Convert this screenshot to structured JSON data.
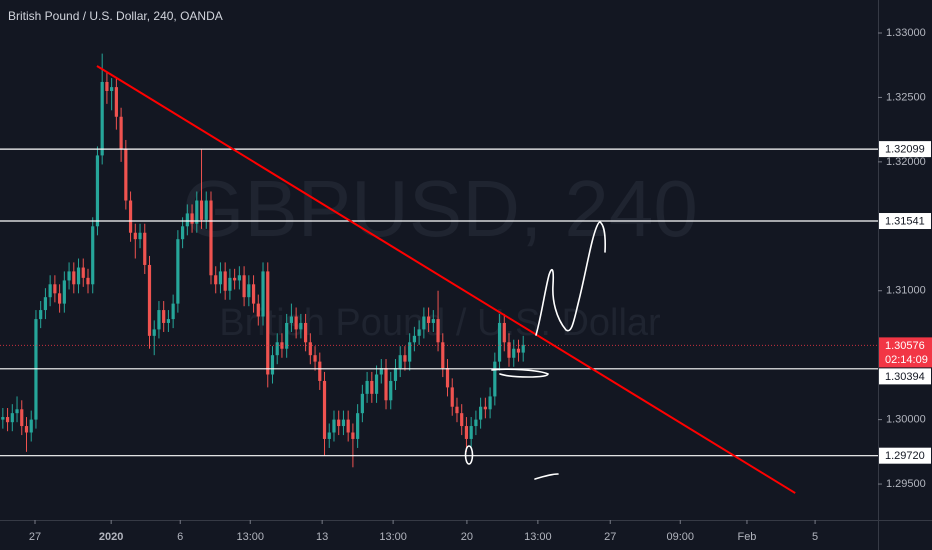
{
  "chart_data": {
    "type": "candlestick",
    "title": "British Pound / U.S. Dollar, 240, OANDA",
    "watermark": "GBPUSD, 240",
    "watermark_subtitle": "British Pound / U.S. Dollar",
    "up_color": "#26a69a",
    "down_color": "#ef5350",
    "open": [
      1.3,
      1.3002,
      1.2998,
      1.3005,
      1.3008,
      1.2995,
      1.299,
      1.3,
      1.3078,
      1.3085,
      1.3095,
      1.3105,
      1.3098,
      1.309,
      1.3108,
      1.3115,
      1.3105,
      1.3118,
      1.311,
      1.3105,
      1.315,
      1.3205,
      1.3262,
      1.3255,
      1.3258,
      1.3235,
      1.321,
      1.317,
      1.3145,
      1.314,
      1.3145,
      1.312,
      1.3065,
      1.307,
      1.3085,
      1.3075,
      1.3078,
      1.309,
      1.314,
      1.315,
      1.316,
      1.3152,
      1.317,
      1.3155,
      1.317,
      1.3112,
      1.3105,
      1.3115,
      1.31,
      1.311,
      1.3108,
      1.3112,
      1.3095,
      1.3105,
      1.309,
      1.308,
      1.3115,
      1.3035,
      1.305,
      1.306,
      1.3055,
      1.3075,
      1.308,
      1.307,
      1.3075,
      1.306,
      1.305,
      1.3045,
      1.303,
      1.2985,
      1.299,
      1.3,
      1.2995,
      1.3,
      1.299,
      1.2985,
      1.3005,
      1.302,
      1.303,
      1.302,
      1.3035,
      1.304,
      1.3015,
      1.303,
      1.304,
      1.305,
      1.3045,
      1.306,
      1.3065,
      1.307,
      1.308,
      1.3075,
      1.3078,
      1.306,
      1.304,
      1.3025,
      1.301,
      1.3005,
      1.2995,
      1.2985,
      1.2995,
      1.3,
      1.301,
      1.3008,
      1.3018,
      1.3045,
      1.3075,
      1.306,
      1.3048,
      1.3055,
      1.3052
    ],
    "high": [
      1.3009,
      1.3009,
      1.3012,
      1.3018,
      1.3015,
      1.3002,
      1.3007,
      1.3085,
      1.3092,
      1.3102,
      1.3112,
      1.3112,
      1.3105,
      1.3115,
      1.3122,
      1.3122,
      1.3125,
      1.3125,
      1.3117,
      1.3157,
      1.3212,
      1.3284,
      1.327,
      1.3265,
      1.3265,
      1.3242,
      1.3217,
      1.3177,
      1.3152,
      1.3152,
      1.3152,
      1.3127,
      1.3077,
      1.3092,
      1.3092,
      1.3085,
      1.3097,
      1.3147,
      1.3157,
      1.3167,
      1.3167,
      1.3177,
      1.321,
      1.3177,
      1.3177,
      1.3119,
      1.3122,
      1.3122,
      1.3117,
      1.3117,
      1.3119,
      1.3119,
      1.3112,
      1.3112,
      1.3097,
      1.3122,
      1.3122,
      1.3057,
      1.3067,
      1.3067,
      1.3082,
      1.309,
      1.3087,
      1.3082,
      1.3082,
      1.3067,
      1.3057,
      1.3052,
      1.3037,
      1.2997,
      1.3007,
      1.3007,
      1.3007,
      1.3007,
      1.2997,
      1.3012,
      1.3027,
      1.3037,
      1.3037,
      1.3042,
      1.3047,
      1.3047,
      1.3037,
      1.3047,
      1.3057,
      1.3057,
      1.3067,
      1.3072,
      1.3077,
      1.3087,
      1.3087,
      1.3085,
      1.31,
      1.3067,
      1.3047,
      1.3032,
      1.3017,
      1.3012,
      1.3002,
      1.3002,
      1.3007,
      1.3017,
      1.3017,
      1.3025,
      1.3052,
      1.3082,
      1.3082,
      1.3067,
      1.3062,
      1.3062,
      1.3065
    ],
    "low": [
      1.2993,
      1.2991,
      1.2991,
      1.2998,
      1.2988,
      1.2975,
      1.2983,
      1.2993,
      1.3071,
      1.3078,
      1.3088,
      1.3091,
      1.3083,
      1.3083,
      1.3101,
      1.3098,
      1.3098,
      1.3103,
      1.3098,
      1.3098,
      1.3143,
      1.3198,
      1.3245,
      1.324,
      1.3225,
      1.32,
      1.3163,
      1.3138,
      1.3125,
      1.3133,
      1.3113,
      1.3055,
      1.305,
      1.3063,
      1.3068,
      1.3068,
      1.3071,
      1.3083,
      1.3133,
      1.3143,
      1.3145,
      1.3145,
      1.3148,
      1.3148,
      1.3105,
      1.3098,
      1.3098,
      1.3093,
      1.3093,
      1.3101,
      1.3101,
      1.3088,
      1.3088,
      1.3083,
      1.3073,
      1.3073,
      1.3025,
      1.3028,
      1.3043,
      1.3048,
      1.3048,
      1.3068,
      1.3063,
      1.3063,
      1.3053,
      1.3043,
      1.3038,
      1.3023,
      1.2972,
      1.2978,
      1.2983,
      1.2988,
      1.2988,
      1.2983,
      1.2963,
      1.2978,
      1.2998,
      1.3013,
      1.3013,
      1.3013,
      1.3028,
      1.3008,
      1.3008,
      1.3023,
      1.3033,
      1.3038,
      1.3038,
      1.3053,
      1.3058,
      1.3063,
      1.3068,
      1.3068,
      1.3053,
      1.3033,
      1.3018,
      1.3003,
      1.2998,
      1.2988,
      1.2975,
      1.2978,
      1.2988,
      1.2993,
      1.3001,
      1.3001,
      1.3011,
      1.3038,
      1.3053,
      1.3041,
      1.3041,
      1.3045,
      1.3045
    ],
    "close": [
      1.3002,
      1.2998,
      1.3005,
      1.3008,
      1.2995,
      1.299,
      1.3,
      1.3078,
      1.3085,
      1.3095,
      1.3105,
      1.3098,
      1.309,
      1.3108,
      1.3115,
      1.3105,
      1.3118,
      1.311,
      1.3105,
      1.315,
      1.3205,
      1.3262,
      1.3255,
      1.3258,
      1.3235,
      1.321,
      1.317,
      1.3145,
      1.314,
      1.3145,
      1.312,
      1.3065,
      1.307,
      1.3085,
      1.3075,
      1.3078,
      1.309,
      1.314,
      1.315,
      1.316,
      1.3152,
      1.317,
      1.3155,
      1.317,
      1.3112,
      1.3105,
      1.3115,
      1.31,
      1.311,
      1.3108,
      1.3112,
      1.3095,
      1.3105,
      1.309,
      1.308,
      1.3115,
      1.3035,
      1.305,
      1.306,
      1.3055,
      1.3075,
      1.308,
      1.307,
      1.3075,
      1.306,
      1.305,
      1.3045,
      1.303,
      1.2985,
      1.299,
      1.3,
      1.2995,
      1.3,
      1.299,
      1.2985,
      1.3005,
      1.302,
      1.303,
      1.302,
      1.3035,
      1.304,
      1.3015,
      1.303,
      1.304,
      1.305,
      1.3045,
      1.306,
      1.3065,
      1.307,
      1.308,
      1.3075,
      1.3078,
      1.306,
      1.304,
      1.3025,
      1.301,
      1.3005,
      1.2995,
      1.2985,
      1.2995,
      1.3,
      1.301,
      1.3008,
      1.3018,
      1.3045,
      1.3075,
      1.306,
      1.3048,
      1.3055,
      1.3052,
      1.3058
    ],
    "xlim": [
      -0.6,
      185
    ],
    "ylim": [
      1.29221,
      1.33256
    ],
    "yticks": [
      {
        "value": 1.33,
        "label": "1.33000"
      },
      {
        "value": 1.325,
        "label": "1.32500"
      },
      {
        "value": 1.32,
        "label": "1.32000"
      },
      {
        "value": 1.31,
        "label": "1.31000"
      },
      {
        "value": 1.3,
        "label": "1.30000"
      },
      {
        "value": 1.295,
        "label": "1.29500"
      }
    ],
    "xticks": [
      {
        "value": 6.8,
        "label": "27"
      },
      {
        "value": 22.9,
        "label": "2020"
      },
      {
        "value": 37.5,
        "label": "6"
      },
      {
        "value": 52.3,
        "label": "13:00"
      },
      {
        "value": 67.5,
        "label": "13"
      },
      {
        "value": 82.5,
        "label": "13:00"
      },
      {
        "value": 98.1,
        "label": "20"
      },
      {
        "value": 113.1,
        "label": "13:00"
      },
      {
        "value": 128.4,
        "label": "27"
      },
      {
        "value": 143.2,
        "label": "09:00"
      },
      {
        "value": 157.3,
        "label": "Feb"
      },
      {
        "value": 171.7,
        "label": "5"
      }
    ],
    "levels": [
      1.32099,
      1.31541,
      1.30394,
      {
        "value": 1.2972,
        "label": "1.29720"
      }
    ],
    "trendline": {
      "x": [
        19.9,
        167.5
      ],
      "y": [
        1.32744,
        1.2943
      ],
      "color": "#ff0000"
    },
    "current_price": {
      "value": 1.30576,
      "countdown": "02:14:09",
      "color": "#f23645"
    }
  }
}
